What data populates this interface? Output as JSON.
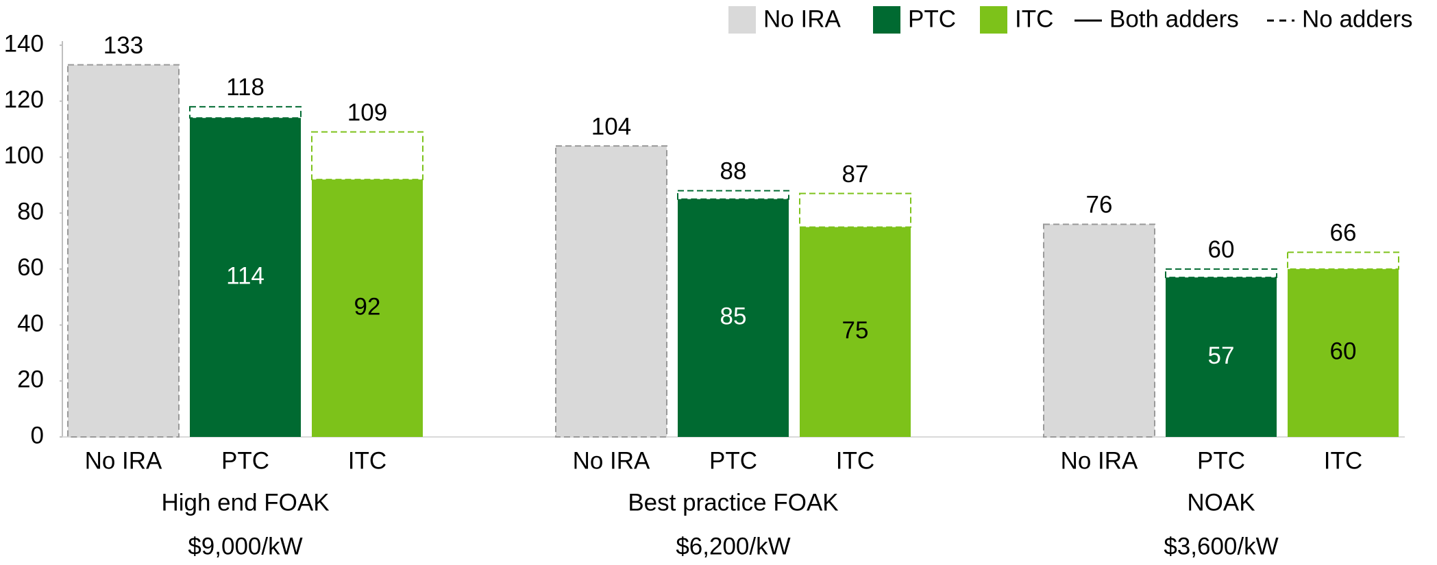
{
  "chart_data": {
    "type": "bar",
    "groups": [
      {
        "label": "High end FOAK",
        "cost": "$9,000/kW"
      },
      {
        "label": "Best practice FOAK",
        "cost": "$6,200/kW"
      },
      {
        "label": "NOAK",
        "cost": "$3,600/kW"
      }
    ],
    "series": [
      {
        "name": "No IRA",
        "color": "#d9d9d9",
        "values": [
          133,
          104,
          76
        ]
      },
      {
        "name": "PTC",
        "color": "#006a31",
        "values": [
          114,
          85,
          57
        ],
        "values_no_adders": [
          118,
          88,
          60
        ]
      },
      {
        "name": "ITC",
        "color": "#7dc21a",
        "values": [
          92,
          75,
          60
        ],
        "values_no_adders": [
          109,
          87,
          66
        ]
      }
    ],
    "line_legend": [
      {
        "name": "Both adders",
        "dashed": false
      },
      {
        "name": "No adders",
        "dashed": true
      }
    ],
    "ylim": [
      0,
      140
    ],
    "yticks": [
      0,
      20,
      40,
      60,
      80,
      100,
      120,
      140
    ],
    "grid": false
  }
}
